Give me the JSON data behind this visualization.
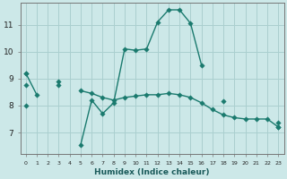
{
  "xlabel": "Humidex (Indice chaleur)",
  "background_color": "#cce8e8",
  "grid_color": "#aacfcf",
  "line_color": "#1a7a6e",
  "x": [
    0,
    1,
    2,
    3,
    4,
    5,
    6,
    7,
    8,
    9,
    10,
    11,
    12,
    13,
    14,
    15,
    16,
    17,
    18,
    19,
    20,
    21,
    22,
    23
  ],
  "line_peak": [
    9.2,
    8.4,
    null,
    8.9,
    null,
    6.55,
    8.2,
    7.7,
    8.1,
    10.1,
    10.05,
    10.1,
    11.1,
    11.55,
    11.55,
    11.05,
    9.5,
    null,
    8.15,
    null,
    null,
    null,
    null,
    null
  ],
  "line_diagonal": [
    9.2,
    null,
    null,
    null,
    null,
    null,
    null,
    null,
    null,
    null,
    null,
    null,
    null,
    null,
    null,
    null,
    null,
    null,
    null,
    null,
    null,
    null,
    null,
    7.2
  ],
  "line_flat": [
    8.75,
    null,
    null,
    8.75,
    null,
    8.55,
    8.45,
    8.3,
    8.2,
    8.3,
    8.35,
    8.4,
    8.4,
    8.45,
    8.4,
    8.3,
    8.1,
    7.85,
    7.65,
    7.55,
    7.5,
    7.5,
    7.5,
    7.2
  ],
  "line_bottom": [
    8.0,
    null,
    null,
    null,
    null,
    null,
    null,
    null,
    null,
    null,
    null,
    null,
    null,
    null,
    null,
    null,
    null,
    null,
    null,
    null,
    null,
    null,
    null,
    7.35
  ],
  "ylim": [
    6.2,
    11.8
  ],
  "yticks": [
    7,
    8,
    9,
    10,
    11
  ],
  "xlim": [
    -0.5,
    23.5
  ],
  "xticks": [
    0,
    1,
    2,
    3,
    4,
    5,
    6,
    7,
    8,
    9,
    10,
    11,
    12,
    13,
    14,
    15,
    16,
    17,
    18,
    19,
    20,
    21,
    22,
    23
  ]
}
